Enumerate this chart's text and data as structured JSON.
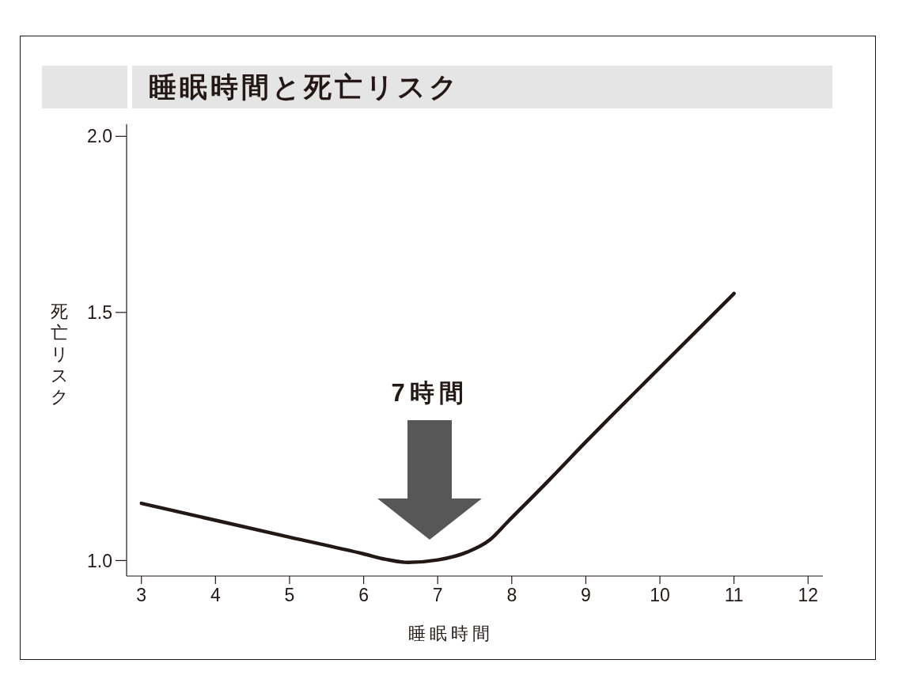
{
  "chart_data": {
    "type": "line",
    "title": "睡眠時間と死亡リスク",
    "xlabel": "睡眠時間",
    "ylabel": "死亡リスク",
    "x": [
      3,
      4,
      5,
      6,
      6.3,
      6.6,
      7,
      7.4,
      7.7,
      7.95,
      8.5,
      9,
      10,
      11
    ],
    "series": [
      {
        "color": "#231815",
        "values": [
          1.098,
          1.068,
          1.039,
          1.011,
          1.002,
          0.997,
          1.001,
          1.014,
          1.034,
          1.066,
          1.14,
          1.214,
          1.371,
          1.547
        ]
      }
    ],
    "xlim": [
      2.8,
      12.2
    ],
    "xticks": [
      3,
      4,
      5,
      6,
      7,
      8,
      9,
      10,
      11,
      12
    ],
    "ylim": [
      0.975,
      2.04
    ],
    "yticks": [
      {
        "value": 1,
        "label": "1.0"
      },
      1.5,
      {
        "value": 2,
        "label": "2.0"
      }
    ],
    "log": true,
    "marker": "none",
    "annotations": [
      "7時間"
    ]
  }
}
